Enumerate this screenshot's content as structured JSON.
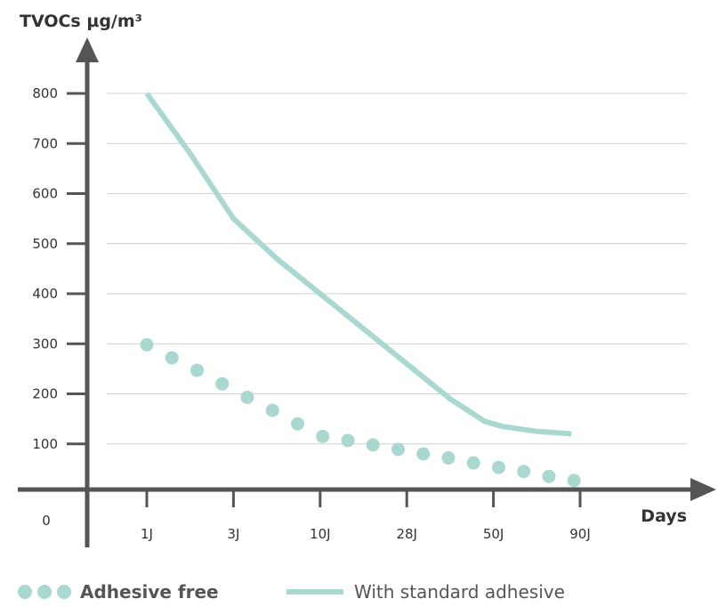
{
  "chart_data": {
    "type": "line",
    "ylabel": "TVOCs µg/m³",
    "xlabel": "Days",
    "origin_label": "0",
    "y_ticks": [
      100,
      200,
      300,
      400,
      500,
      600,
      700,
      800
    ],
    "ylim": [
      0,
      800
    ],
    "x_ticks": [
      "1J",
      "3J",
      "10J",
      "28J",
      "50J",
      "90J"
    ],
    "grid": true,
    "legend_placement": "bottom",
    "series": [
      {
        "name": "Adhesive free",
        "style": "dots",
        "color": "#a8d8cf",
        "x": [
          0,
          0.29,
          0.58,
          0.87,
          1.16,
          1.45,
          1.74,
          2.03,
          2.32,
          2.61,
          2.9,
          3.19,
          3.48,
          3.77,
          4.06,
          4.35,
          4.64,
          4.93
        ],
        "values": [
          298,
          272,
          247,
          220,
          193,
          167,
          140,
          115,
          107,
          98,
          89,
          80,
          72,
          62,
          53,
          45,
          35,
          27
        ]
      },
      {
        "name": "With standard adhesive",
        "style": "line",
        "color": "#a8d8cf",
        "x": [
          0,
          0.5,
          1.0,
          1.5,
          2.0,
          2.5,
          3.0,
          3.5,
          3.9,
          4.1,
          4.5,
          4.9
        ],
        "values": [
          800,
          680,
          550,
          470,
          400,
          330,
          260,
          190,
          145,
          135,
          125,
          120
        ]
      }
    ]
  },
  "legend": {
    "dots_label": "Adhesive free",
    "line_label": "With standard adhesive",
    "dot_color": "#a8d8cf",
    "line_color": "#a8d8cf"
  },
  "colors": {
    "axis": "#555555",
    "grid": "#cfcfcf",
    "series": "#a8d8cf"
  }
}
